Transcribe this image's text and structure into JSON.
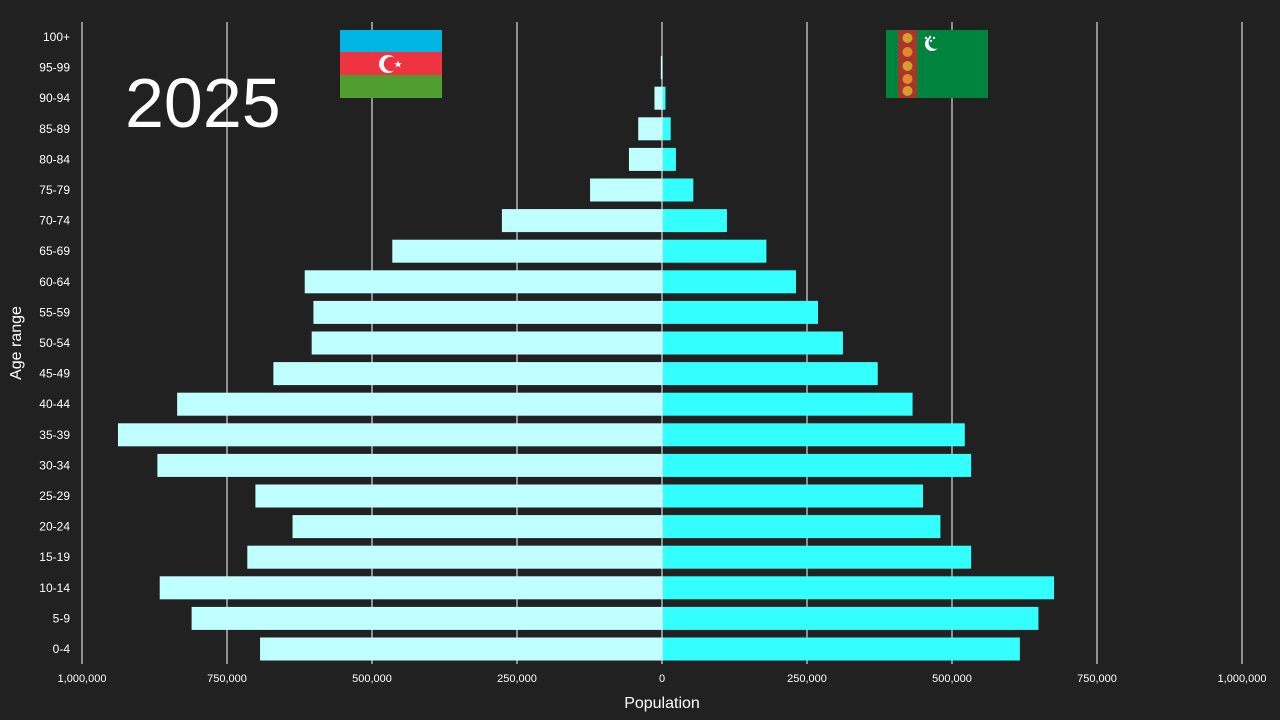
{
  "year_label": "2025",
  "colors": {
    "background": "#212121",
    "left_bar": "#bfffff",
    "right_bar": "#33ffff",
    "grid": "#ffffff",
    "text": "#ffffff"
  },
  "flags": {
    "left": "azerbaijan-flag",
    "right": "turkmenistan-flag"
  },
  "chart_data": {
    "type": "bar",
    "orientation": "horizontal-diverging",
    "xlabel": "Population",
    "ylabel": "Age range",
    "xlim": [
      -1000000,
      1000000
    ],
    "x_ticks": [
      -1000000,
      -750000,
      -500000,
      -250000,
      0,
      250000,
      500000,
      750000,
      1000000
    ],
    "x_tick_labels": [
      "1,000,000",
      "750,000",
      "500,000",
      "250,000",
      "0",
      "250,000",
      "500,000",
      "750,000",
      "1,000,000"
    ],
    "grid": true,
    "categories": [
      "0-4",
      "5-9",
      "10-14",
      "15-19",
      "20-24",
      "25-29",
      "30-34",
      "35-39",
      "40-44",
      "45-49",
      "50-54",
      "55-59",
      "60-64",
      "65-69",
      "70-74",
      "75-79",
      "80-84",
      "85-89",
      "90-94",
      "95-99",
      "100+"
    ],
    "series": [
      {
        "side": "left",
        "values": [
          693000,
          811000,
          866000,
          715000,
          637000,
          701000,
          870000,
          938000,
          836000,
          670000,
          604000,
          601000,
          616000,
          465000,
          276000,
          124000,
          57000,
          41000,
          13000,
          2000,
          0
        ]
      },
      {
        "side": "right",
        "values": [
          617000,
          649000,
          676000,
          533000,
          480000,
          450000,
          533000,
          522000,
          432000,
          372000,
          312000,
          269000,
          231000,
          180000,
          112000,
          54000,
          24000,
          15000,
          6000,
          1000,
          0
        ]
      }
    ]
  }
}
